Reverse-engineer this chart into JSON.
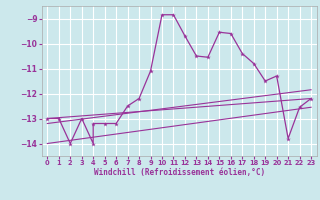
{
  "xlabel": "Windchill (Refroidissement éolien,°C)",
  "ylabel": "",
  "bg_color": "#cce8ec",
  "grid_color": "#ffffff",
  "line_color": "#993399",
  "marker": "*",
  "xlim": [
    -0.5,
    23.5
  ],
  "ylim": [
    -14.5,
    -8.5
  ],
  "yticks": [
    -14,
    -13,
    -12,
    -11,
    -10,
    -9
  ],
  "xticks": [
    0,
    1,
    2,
    3,
    4,
    5,
    6,
    7,
    8,
    9,
    10,
    11,
    12,
    13,
    14,
    15,
    16,
    17,
    18,
    19,
    20,
    21,
    22,
    23
  ],
  "series": [
    [
      0,
      -13.0
    ],
    [
      1,
      -13.0
    ],
    [
      2,
      -14.0
    ],
    [
      3,
      -13.0
    ],
    [
      4,
      -14.0
    ],
    [
      4,
      -13.2
    ],
    [
      5,
      -13.2
    ],
    [
      6,
      -13.2
    ],
    [
      7,
      -12.5
    ],
    [
      8,
      -12.2
    ],
    [
      9,
      -11.1
    ],
    [
      10,
      -8.85
    ],
    [
      11,
      -8.85
    ],
    [
      12,
      -9.7
    ],
    [
      13,
      -10.5
    ],
    [
      14,
      -10.55
    ],
    [
      15,
      -9.55
    ],
    [
      16,
      -9.6
    ],
    [
      17,
      -10.4
    ],
    [
      18,
      -10.8
    ],
    [
      19,
      -11.5
    ],
    [
      20,
      -11.3
    ],
    [
      21,
      -13.8
    ],
    [
      22,
      -12.55
    ],
    [
      23,
      -12.2
    ]
  ],
  "linear_series_1": [
    [
      0,
      -13.0
    ],
    [
      23,
      -12.2
    ]
  ],
  "linear_series_2": [
    [
      0,
      -13.2
    ],
    [
      23,
      -11.85
    ]
  ],
  "linear_series_3": [
    [
      0,
      -14.0
    ],
    [
      23,
      -12.55
    ]
  ]
}
